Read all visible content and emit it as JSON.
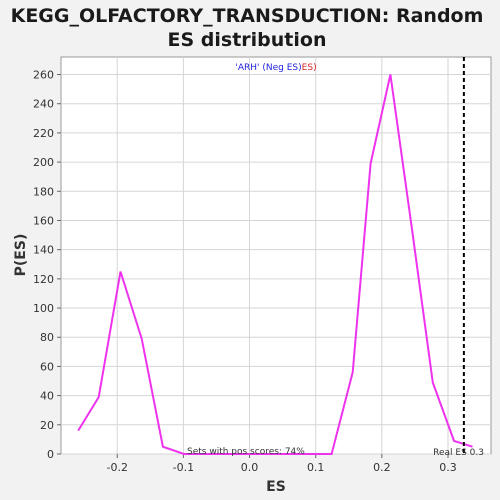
{
  "chart_data": {
    "type": "line",
    "title_lines": [
      "KEGG_OLFACTORY_TRANSDUCTION: Random",
      "ES distribution"
    ],
    "xlabel": "ES",
    "ylabel": "P(ES)",
    "xlim": [
      -0.285,
      0.365
    ],
    "ylim": [
      0,
      272
    ],
    "x_ticks": [
      -0.2,
      -0.1,
      0.0,
      0.1,
      0.2,
      0.3
    ],
    "x_tick_labels": [
      "-0.2",
      "-0.1",
      "0.0",
      "0.1",
      "0.2",
      "0.3"
    ],
    "y_ticks": [
      0,
      20,
      40,
      60,
      80,
      100,
      120,
      140,
      160,
      180,
      200,
      220,
      240,
      260
    ],
    "y_tick_labels": [
      "0",
      "20",
      "40",
      "60",
      "80",
      "100",
      "120",
      "140",
      "160",
      "180",
      "200",
      "220",
      "240",
      "260"
    ],
    "grid": true,
    "legend": {
      "position": "top-center",
      "part1": "'ARH' (Neg ES)",
      "part2": "ES)"
    },
    "series": [
      {
        "color": "#ee33ee",
        "x": [
          -0.259,
          -0.228,
          -0.195,
          -0.163,
          -0.131,
          -0.099,
          -0.068,
          -0.036,
          -0.004,
          0.028,
          0.06,
          0.092,
          0.124,
          0.156,
          0.183,
          0.213,
          0.245,
          0.277,
          0.309,
          0.337
        ],
        "y": [
          16,
          39,
          125,
          79,
          5,
          0,
          0,
          0,
          0,
          0,
          0,
          0,
          0,
          56,
          199,
          260,
          156,
          49,
          9,
          5
        ]
      }
    ],
    "real_es": {
      "x": 0.324,
      "label": "Real ES 0.3",
      "color": "#000000"
    },
    "annotation": "Sets with pos scores: 74%"
  }
}
